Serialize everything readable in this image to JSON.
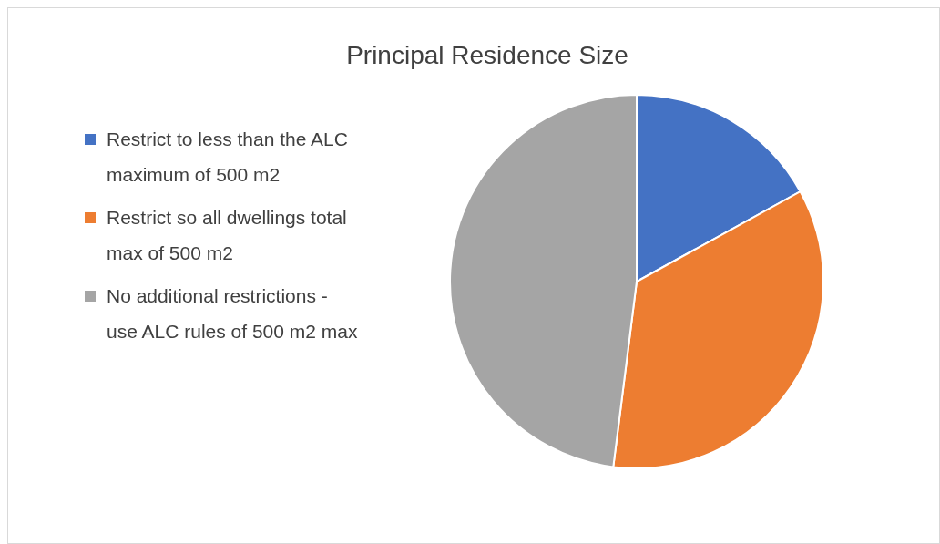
{
  "chart_data": {
    "type": "pie",
    "title": "Principal Residence Size",
    "categories": [
      "Restrict to less than the ALC maximum of 500 m2",
      "Restrict so all dwellings total max of 500 m2",
      "No additional restrictions - use ALC rules of 500 m2 max"
    ],
    "values": [
      17,
      35,
      48
    ],
    "colors": [
      "#4472c4",
      "#ed7d31",
      "#a5a5a5"
    ],
    "legend": "left"
  }
}
